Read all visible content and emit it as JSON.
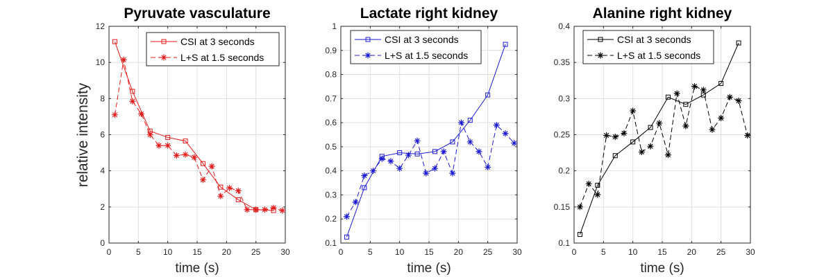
{
  "figure": {
    "ylabel": "relative intensity"
  },
  "chart_data": [
    {
      "type": "line",
      "title": "Pyruvate vasculature",
      "xlabel": "time (s)",
      "ylabel": "relative intensity",
      "xlim": [
        0,
        30
      ],
      "ylim": [
        0,
        12
      ],
      "xticks": [
        0,
        5,
        10,
        15,
        20,
        25,
        30
      ],
      "yticks": [
        0,
        2,
        4,
        6,
        8,
        10,
        12
      ],
      "ytick_labels": [
        "0",
        "2",
        "4",
        "6",
        "8",
        "10",
        "12"
      ],
      "grid": true,
      "legend_position": "top-right",
      "color": "#e41a1a",
      "series": [
        {
          "name": "CSI at 3 seconds",
          "line": "solid",
          "marker": "square",
          "x": [
            1,
            4,
            7,
            10,
            13,
            16,
            19,
            22,
            25,
            28
          ],
          "y": [
            11.15,
            8.4,
            6.2,
            5.85,
            5.65,
            4.4,
            3.1,
            2.4,
            1.85,
            1.8
          ]
        },
        {
          "name": "L+S at 1.5 seconds",
          "line": "dashed",
          "marker": "star",
          "x": [
            1,
            2.5,
            4,
            5.5,
            7,
            8.5,
            10,
            11.5,
            13,
            14.5,
            16,
            17.5,
            19,
            20.5,
            22,
            23.5,
            25,
            26.5,
            28,
            29.5
          ],
          "y": [
            7.1,
            10.15,
            7.85,
            7.15,
            6.0,
            5.4,
            5.4,
            4.85,
            4.9,
            4.75,
            3.5,
            4.25,
            2.6,
            3.05,
            2.9,
            1.85,
            1.85,
            1.85,
            1.95,
            1.8
          ]
        }
      ]
    },
    {
      "type": "line",
      "title": "Lactate right kidney",
      "xlabel": "time (s)",
      "ylabel": "",
      "xlim": [
        0,
        30
      ],
      "ylim": [
        0.1,
        1.0
      ],
      "xticks": [
        0,
        5,
        10,
        15,
        20,
        25,
        30
      ],
      "yticks": [
        0.1,
        0.2,
        0.3,
        0.4,
        0.5,
        0.6,
        0.7,
        0.8,
        0.9,
        1.0
      ],
      "ytick_labels": [
        "0.1",
        "0.2",
        "0.3",
        "0.4",
        "0.5",
        "0.6",
        "0.7",
        "0.8",
        "0.9",
        "1"
      ],
      "grid": true,
      "legend_position": "top-left",
      "color": "#1a1ad4",
      "series": [
        {
          "name": "CSI at 3 seconds",
          "line": "solid",
          "marker": "square",
          "x": [
            1,
            4,
            7,
            10,
            13,
            16,
            19,
            22,
            25,
            28
          ],
          "y": [
            0.125,
            0.33,
            0.46,
            0.475,
            0.47,
            0.48,
            0.52,
            0.61,
            0.715,
            0.925
          ]
        },
        {
          "name": "L+S at 1.5 seconds",
          "line": "dashed",
          "marker": "star",
          "x": [
            1,
            2.5,
            4,
            5.5,
            7,
            8.5,
            10,
            11.5,
            13,
            14.5,
            16,
            17.5,
            19,
            20.5,
            22,
            23.5,
            25,
            26.5,
            28,
            29.5
          ],
          "y": [
            0.21,
            0.27,
            0.38,
            0.4,
            0.45,
            0.44,
            0.41,
            0.465,
            0.525,
            0.39,
            0.41,
            0.48,
            0.39,
            0.6,
            0.52,
            0.48,
            0.415,
            0.59,
            0.555,
            0.515
          ]
        }
      ]
    },
    {
      "type": "line",
      "title": "Alanine right kidney",
      "xlabel": "time (s)",
      "ylabel": "",
      "xlim": [
        0,
        30
      ],
      "ylim": [
        0.1,
        0.4
      ],
      "xticks": [
        0,
        5,
        10,
        15,
        20,
        25,
        30
      ],
      "yticks": [
        0.1,
        0.15,
        0.2,
        0.25,
        0.3,
        0.35,
        0.4
      ],
      "ytick_labels": [
        "0.1",
        "0.15",
        "0.2",
        "0.25",
        "0.3",
        "0.35",
        "0.4"
      ],
      "grid": true,
      "legend_position": "top-left",
      "color": "#000000",
      "series": [
        {
          "name": "CSI at 3 seconds",
          "line": "solid",
          "marker": "square",
          "x": [
            1,
            4,
            7,
            10,
            13,
            16,
            19,
            22,
            25,
            28
          ],
          "y": [
            0.112,
            0.18,
            0.221,
            0.24,
            0.26,
            0.302,
            0.292,
            0.305,
            0.321,
            0.377
          ]
        },
        {
          "name": "L+S at 1.5 seconds",
          "line": "dashed",
          "marker": "star",
          "x": [
            1,
            2.5,
            4,
            5.5,
            7,
            8.5,
            10,
            11.5,
            13,
            14.5,
            16,
            17.5,
            19,
            20.5,
            22,
            23.5,
            25,
            26.5,
            28,
            29.5
          ],
          "y": [
            0.15,
            0.182,
            0.167,
            0.249,
            0.247,
            0.252,
            0.283,
            0.226,
            0.234,
            0.266,
            0.222,
            0.307,
            0.262,
            0.317,
            0.312,
            0.257,
            0.273,
            0.302,
            0.297,
            0.249
          ]
        }
      ]
    }
  ]
}
